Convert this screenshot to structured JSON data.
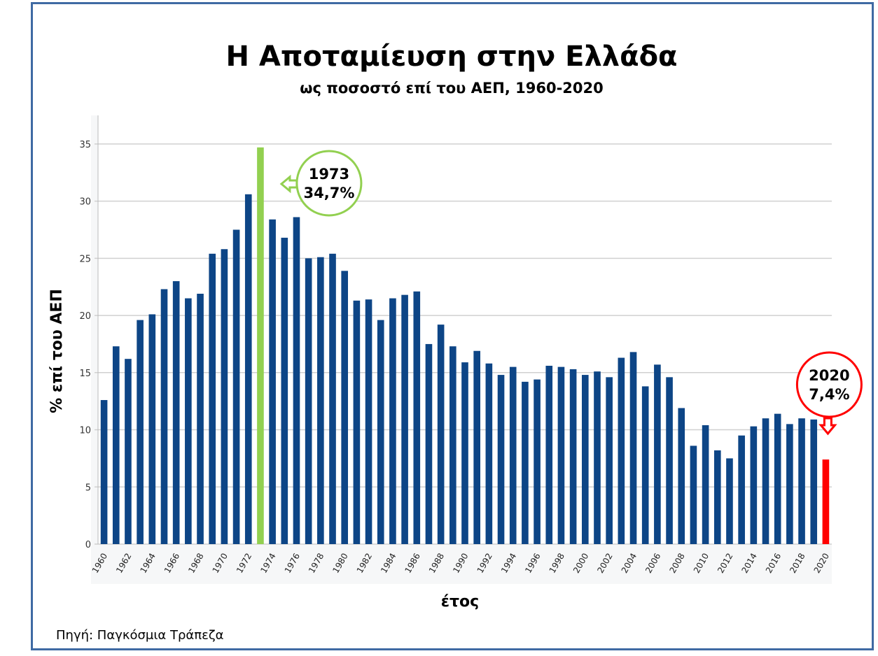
{
  "chart_data": {
    "type": "bar",
    "title": "Η Αποταμίευση στην Ελλάδα",
    "subtitle": "ως ποσοστό επί του ΑΕΠ, 1960-2020",
    "xlabel": "έτος",
    "ylabel": "% επί του ΑΕΠ",
    "ylim": [
      0,
      37.5
    ],
    "yticks": [
      "0",
      "5",
      "10",
      "15",
      "20",
      "25",
      "30",
      "35"
    ],
    "grid": true,
    "categories": [
      "1960",
      "1961",
      "1962",
      "1963",
      "1964",
      "1965",
      "1966",
      "1967",
      "1968",
      "1969",
      "1970",
      "1971",
      "1972",
      "1973",
      "1974",
      "1975",
      "1976",
      "1977",
      "1978",
      "1979",
      "1980",
      "1981",
      "1982",
      "1983",
      "1984",
      "1985",
      "1986",
      "1987",
      "1988",
      "1989",
      "1990",
      "1991",
      "1992",
      "1993",
      "1994",
      "1995",
      "1996",
      "1997",
      "1998",
      "1999",
      "2000",
      "2001",
      "2002",
      "2003",
      "2004",
      "2005",
      "2006",
      "2007",
      "2008",
      "2009",
      "2010",
      "2011",
      "2012",
      "2013",
      "2014",
      "2015",
      "2016",
      "2017",
      "2018",
      "2019",
      "2020"
    ],
    "xtick_labels": [
      "1960",
      "",
      "1962",
      "",
      "1964",
      "",
      "1966",
      "",
      "1968",
      "",
      "1970",
      "",
      "1972",
      "",
      "1974",
      "",
      "1976",
      "",
      "1978",
      "",
      "1980",
      "",
      "1982",
      "",
      "1984",
      "",
      "1986",
      "",
      "1988",
      "",
      "1990",
      "",
      "1992",
      "",
      "1994",
      "",
      "1996",
      "",
      "1998",
      "",
      "2000",
      "",
      "2002",
      "",
      "2004",
      "",
      "2006",
      "",
      "2008",
      "",
      "2010",
      "",
      "2012",
      "",
      "2014",
      "",
      "2016",
      "",
      "2018",
      "",
      "2020"
    ],
    "values": [
      12.6,
      17.3,
      16.2,
      19.6,
      20.1,
      22.3,
      23.0,
      21.5,
      21.9,
      25.4,
      25.8,
      27.5,
      30.6,
      34.7,
      28.4,
      26.8,
      28.6,
      25.0,
      25.1,
      25.4,
      23.9,
      21.3,
      21.4,
      19.6,
      21.5,
      21.8,
      22.1,
      17.5,
      19.2,
      17.3,
      15.9,
      16.9,
      15.8,
      14.8,
      15.5,
      14.2,
      14.4,
      15.6,
      15.5,
      15.3,
      14.8,
      15.1,
      14.6,
      16.3,
      16.8,
      13.8,
      15.7,
      14.6,
      11.9,
      8.6,
      10.4,
      8.2,
      7.5,
      9.5,
      10.3,
      11.0,
      11.4,
      10.5,
      11.0,
      10.9,
      7.4
    ],
    "colors": {
      "default": "#0d4586",
      "max": "#92d050",
      "last": "#ff0000",
      "grid": "#d0d0d0"
    },
    "annotations": [
      {
        "year": "1973",
        "value_label": "34,7%",
        "color": "#92d050",
        "arrow": "left"
      },
      {
        "year": "2020",
        "value_label": "7,4%",
        "color": "#ff0000",
        "arrow": "down"
      }
    ]
  },
  "source": "Πηγή: Παγκόσμια Τράπεζα"
}
